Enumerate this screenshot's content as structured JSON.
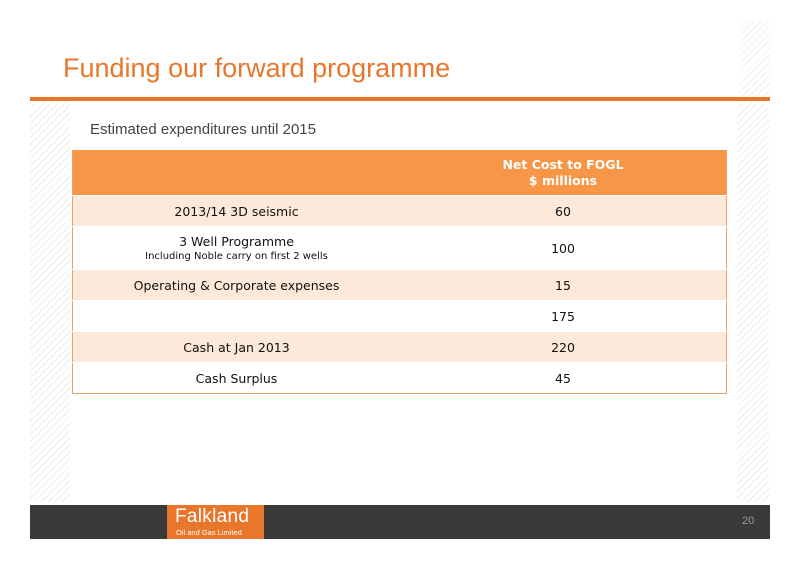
{
  "slide": {
    "title": "Funding our forward programme",
    "subtitle": "Estimated expenditures until 2015",
    "page_number": "20"
  },
  "table": {
    "header": {
      "col1": "",
      "col2_line1": "Net Cost to FOGL",
      "col2_line2": "$ millions"
    },
    "rows": [
      {
        "label": "2013/14 3D seismic",
        "note": "",
        "value": "60"
      },
      {
        "label": "3 Well Programme",
        "note": "Including Noble carry on first 2 wells",
        "value": "100"
      },
      {
        "label": "Operating & Corporate expenses",
        "note": "",
        "value": "15"
      },
      {
        "label": "",
        "note": "",
        "value": "175"
      },
      {
        "label": "Cash at Jan 2013",
        "note": "",
        "value": "220"
      },
      {
        "label": "Cash Surplus",
        "note": "",
        "value": "45"
      }
    ]
  },
  "footer": {
    "logo_name": "Falkland",
    "logo_sub": "Oil and Gas Limited",
    "accent_color": "#e8762b"
  }
}
